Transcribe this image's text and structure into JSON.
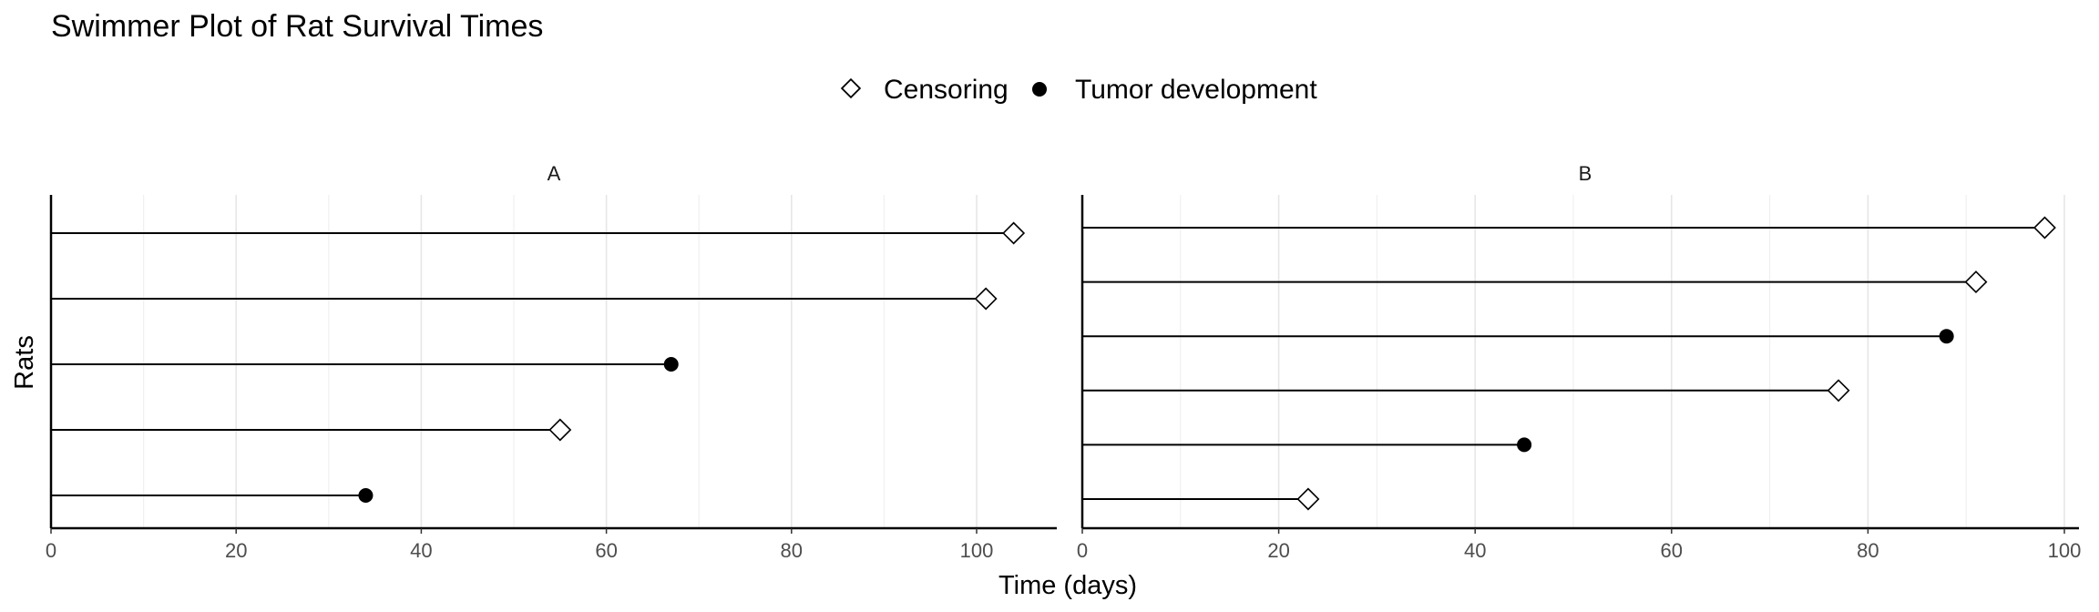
{
  "chart_data": {
    "type": "swimmer",
    "title": "Swimmer Plot of Rat Survival Times",
    "xlabel": "Time (days)",
    "ylabel": "Rats",
    "legend": {
      "position": "top",
      "entries": [
        {
          "label": "Censoring",
          "marker": "open-diamond"
        },
        {
          "label": "Tumor development",
          "marker": "filled-circle"
        }
      ]
    },
    "grid": "vertical",
    "facets": [
      {
        "label": "A",
        "xlim": [
          0,
          105
        ],
        "xticks": [
          0,
          20,
          40,
          60,
          80,
          100
        ],
        "subjects": [
          {
            "time": 104,
            "event": "Censoring"
          },
          {
            "time": 101,
            "event": "Censoring"
          },
          {
            "time": 67,
            "event": "Tumor development"
          },
          {
            "time": 55,
            "event": "Censoring"
          },
          {
            "time": 34,
            "event": "Tumor development"
          }
        ]
      },
      {
        "label": "B",
        "xlim": [
          0,
          101
        ],
        "xticks": [
          0,
          20,
          40,
          60,
          80,
          100
        ],
        "subjects": [
          {
            "time": 98,
            "event": "Censoring"
          },
          {
            "time": 91,
            "event": "Censoring"
          },
          {
            "time": 88,
            "event": "Tumor development"
          },
          {
            "time": 77,
            "event": "Censoring"
          },
          {
            "time": 45,
            "event": "Tumor development"
          },
          {
            "time": 23,
            "event": "Censoring"
          }
        ]
      }
    ]
  }
}
